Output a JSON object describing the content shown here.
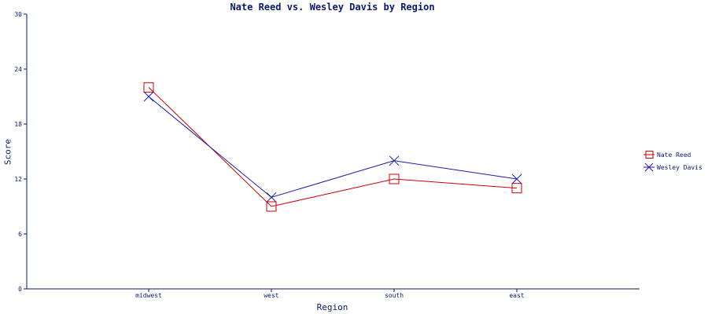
{
  "chart_data": {
    "type": "line",
    "title": "Nate Reed vs. Wesley Davis by Region",
    "xlabel": "Region",
    "ylabel": "Score",
    "categories": [
      "midwest",
      "west",
      "south",
      "east"
    ],
    "ylim": [
      0,
      30
    ],
    "yticks": [
      0,
      6,
      12,
      18,
      24,
      30
    ],
    "series": [
      {
        "name": "Nate Reed",
        "values": [
          22,
          9,
          12,
          11
        ],
        "color": "#cc0000",
        "marker": "square"
      },
      {
        "name": "Wesley Davis",
        "values": [
          21,
          10,
          14,
          12
        ],
        "color": "#1a1aaa",
        "marker": "x"
      }
    ],
    "legend_position": "right",
    "grid": false
  }
}
